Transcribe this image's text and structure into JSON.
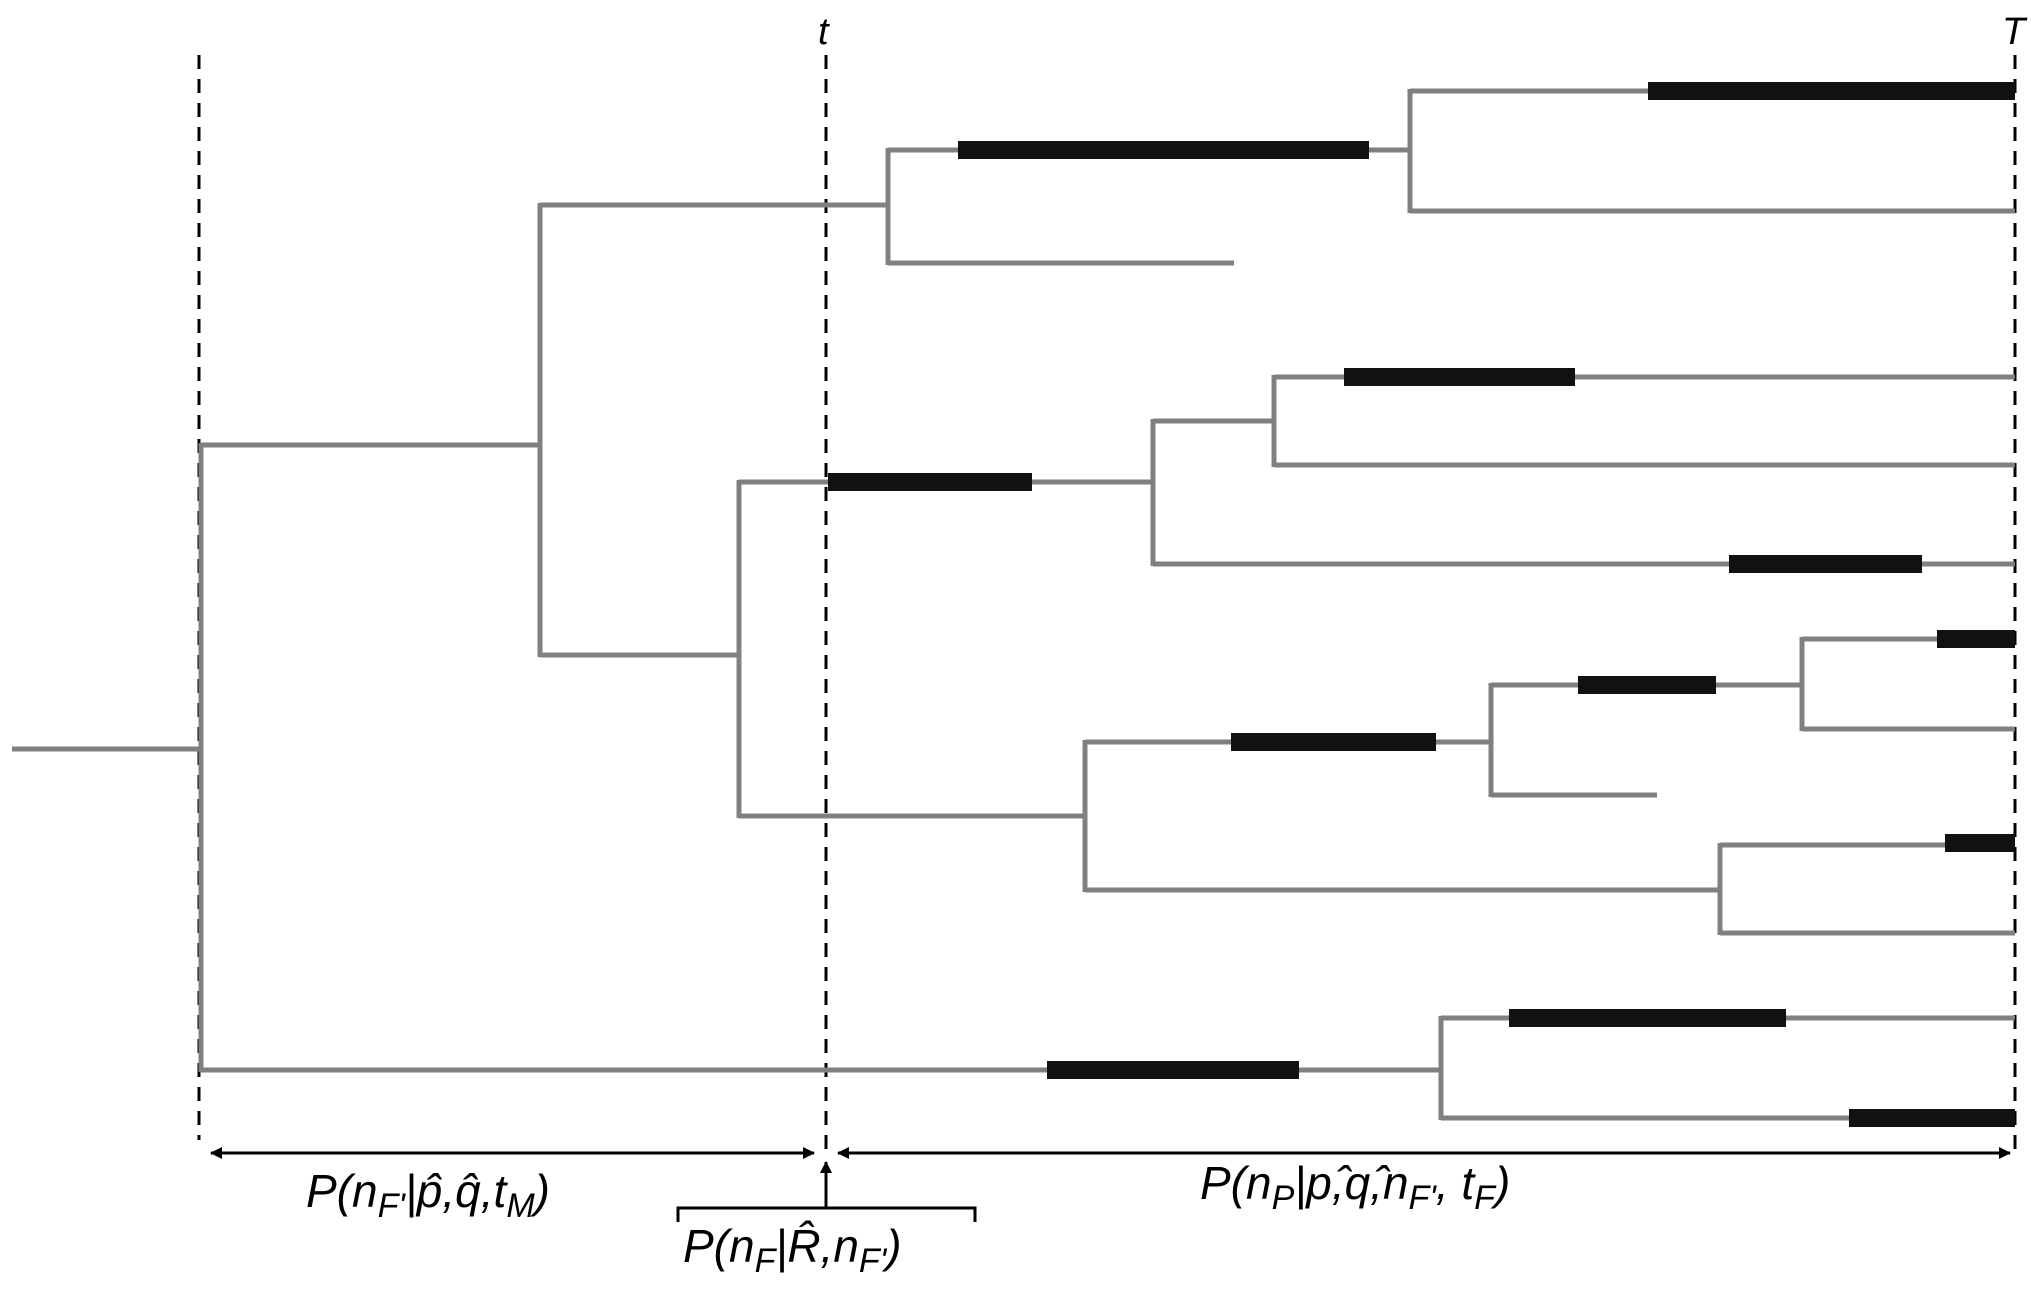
{
  "time_markers": {
    "present_label": "t",
    "final_label": "T"
  },
  "formulas": {
    "left_interval": {
      "main_1": "P(n",
      "sub_1": "F'",
      "main_2": "|p̂,q̂,t",
      "sub_2": "M",
      "main_3": ")"
    },
    "middle_point": {
      "main_1": "P(n",
      "sub_1": "F",
      "main_2": "|R̂,n",
      "sub_2": "F'",
      "main_3": ")"
    },
    "right_interval": {
      "main_1": "P(n",
      "sub_1": "P",
      "main_2": "|p,̂q,̂n",
      "sub_2": "F'",
      "main_3": ", t",
      "sub_3": "F",
      "main_4": ")"
    }
  },
  "colors": {
    "branch": "#808080",
    "fossil_range": "#111111",
    "markers": "#000000",
    "background": "#ffffff"
  }
}
